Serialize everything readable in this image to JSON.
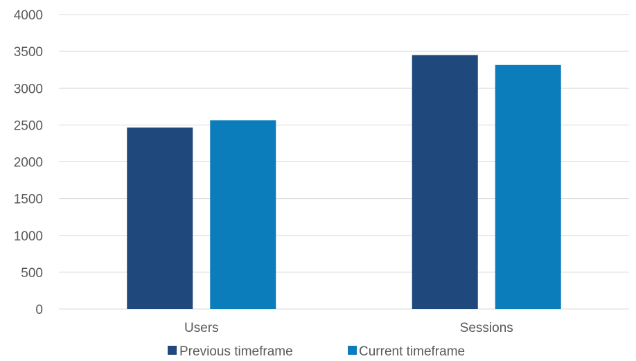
{
  "chart_data": {
    "type": "bar",
    "title": "",
    "xlabel": "",
    "ylabel": "",
    "categories": [
      "Users",
      "Sessions"
    ],
    "series": [
      {
        "name": "Previous timeframe",
        "values": [
          2465,
          3450
        ],
        "color": "#1f497d"
      },
      {
        "name": "Current timeframe",
        "values": [
          2565,
          3315
        ],
        "color": "#0b7dbb"
      }
    ],
    "ylim": [
      0,
      4000
    ],
    "yticks": [
      0,
      500,
      1000,
      1500,
      2000,
      2500,
      3000,
      3500,
      4000
    ],
    "grid": true,
    "legend_position": "bottom"
  }
}
